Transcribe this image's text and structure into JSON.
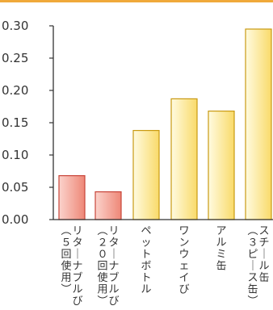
{
  "chart_data": {
    "type": "bar",
    "title": "",
    "xlabel": "",
    "ylabel": "",
    "ylim": [
      0,
      0.3
    ],
    "yticks": [
      "0.00",
      "0.05",
      "0.10",
      "0.15",
      "0.20",
      "0.25",
      "0.30"
    ],
    "categories": [
      "リターナブルび（５回使用）",
      "リターナブルび（２０回使用）",
      "ペットボトル",
      "ワンウェイび",
      "アルミ缶",
      "スチール缶（３ピース缶）"
    ],
    "values": [
      0.068,
      0.043,
      0.138,
      0.187,
      0.168,
      0.295
    ],
    "grid": false,
    "colors": {
      "returnable": "#f4a59a",
      "returnable_edge": "#c8453a",
      "oneway": "#fdeea3",
      "oneway_edge": "#c99a12",
      "top_rule": "#f0a93a",
      "axis": "#333333"
    },
    "bar_color_groups": [
      "returnable",
      "returnable",
      "oneway",
      "oneway",
      "oneway",
      "oneway"
    ]
  }
}
